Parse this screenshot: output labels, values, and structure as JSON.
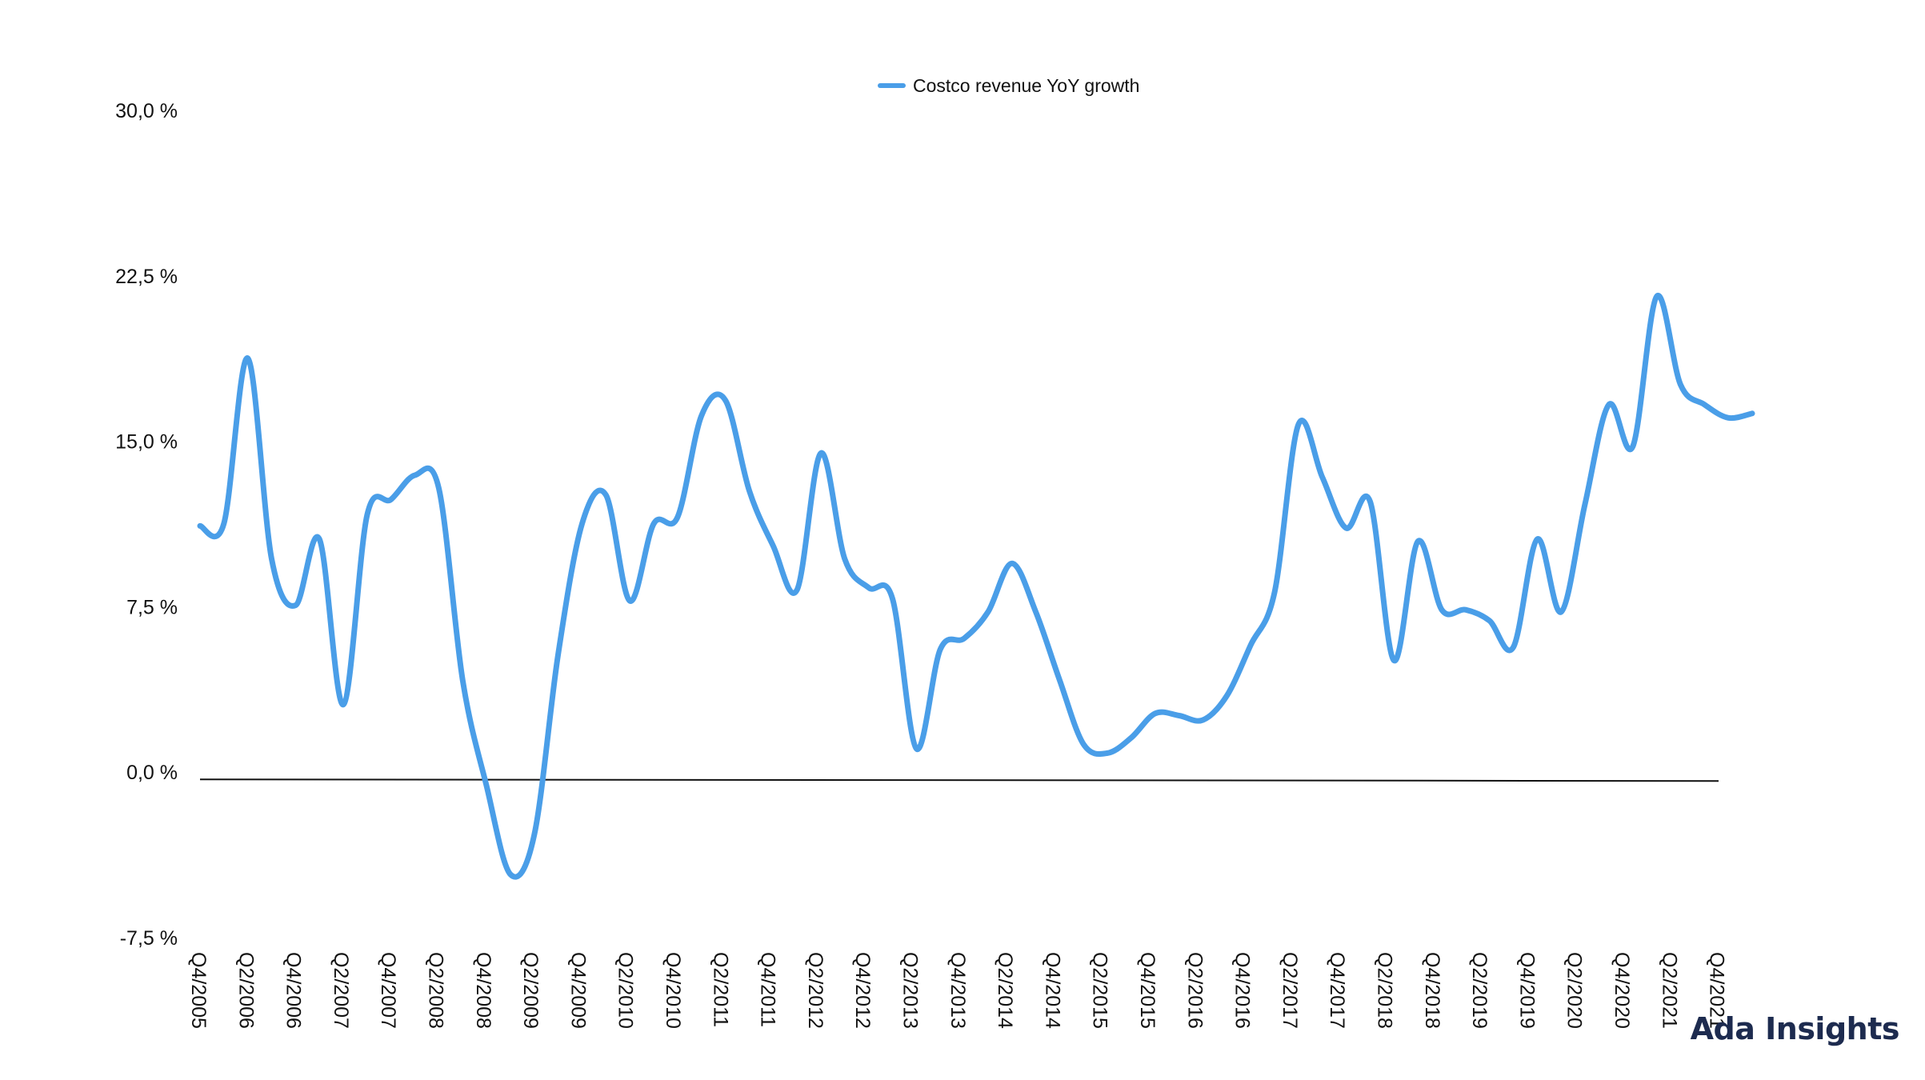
{
  "brand": "Ada Insights",
  "chart_data": {
    "type": "line",
    "legend": "Costco revenue YoY growth",
    "legend_position": "top-center",
    "series_color": "#4a9ee8",
    "yticks": [
      "30,0 %",
      "22,5 %",
      "15,0 %",
      "7,5 %",
      "0,0 %",
      "-7,5 %"
    ],
    "ylim": [
      -7.5,
      30
    ],
    "grid": false,
    "xtick_labels": [
      "Q4/2005",
      "Q2/2006",
      "Q4/2006",
      "Q2/2007",
      "Q4/2007",
      "Q2/2008",
      "Q4/2008",
      "Q2/2009",
      "Q4/2009",
      "Q2/2010",
      "Q4/2010",
      "Q2/2011",
      "Q4/2011",
      "Q2/2012",
      "Q4/2012",
      "Q2/2013",
      "Q4/2013",
      "Q2/2014",
      "Q4/2014",
      "Q2/2015",
      "Q4/2015",
      "Q2/2016",
      "Q4/2016",
      "Q2/2017",
      "Q4/2017",
      "Q2/2018",
      "Q4/2018",
      "Q2/2019",
      "Q4/2019",
      "Q2/2020",
      "Q4/2020",
      "Q2/2021",
      "Q4/2021"
    ],
    "series": [
      {
        "name": "Costco revenue YoY growth",
        "values": [
          11.2,
          11.3,
          18.8,
          9.7,
          7.6,
          10.6,
          3.1,
          11.7,
          12.4,
          13.5,
          12.9,
          4.2,
          -0.6,
          -4.6,
          -2.8,
          5.4,
          11.3,
          12.6,
          7.8,
          11.3,
          11.6,
          16.2,
          16.9,
          12.8,
          10.3,
          8.3,
          14.5,
          9.7,
          8.4,
          7.9,
          1.1,
          5.6,
          6.1,
          7.3,
          9.5,
          7.3,
          4.2,
          1.3,
          0.9,
          1.6,
          2.7,
          2.6,
          2.4,
          3.5,
          5.8,
          8.2,
          15.8,
          13.4,
          11.1,
          12.3,
          5.1,
          10.5,
          7.4,
          7.4,
          6.9,
          5.7,
          10.6,
          7.3,
          12.2,
          16.7,
          14.8,
          21.6,
          17.6,
          16.7,
          16.1,
          16.3
        ]
      }
    ]
  }
}
